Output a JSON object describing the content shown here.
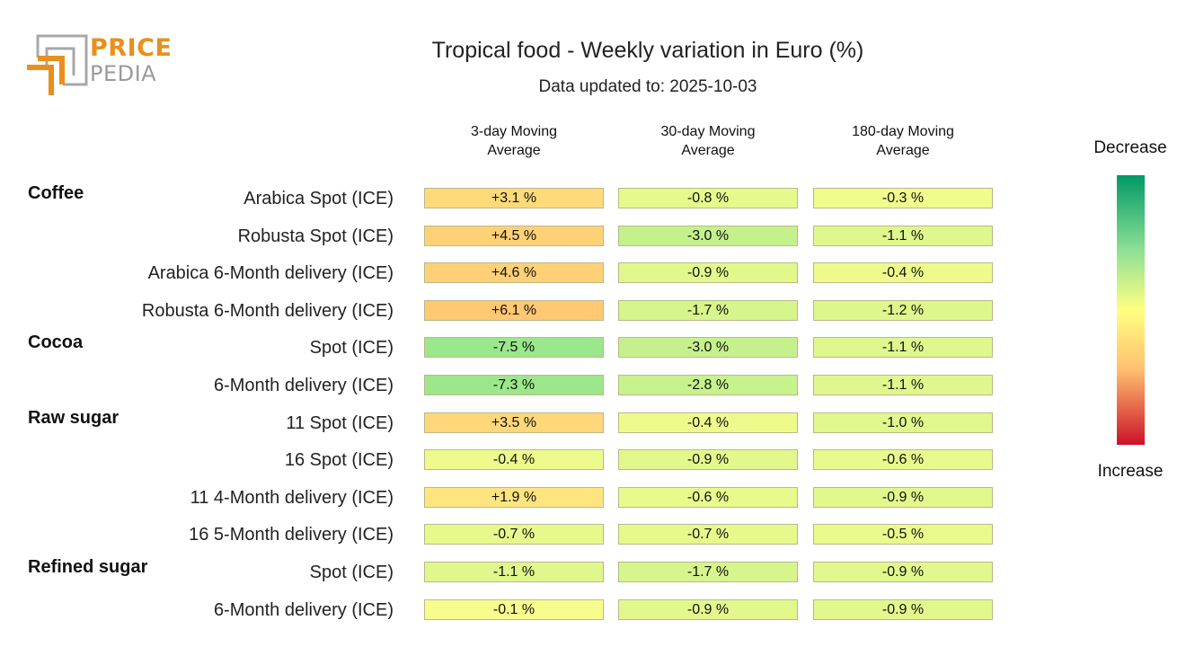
{
  "logo": {
    "line1": "PRICE",
    "line2": "PEDIA"
  },
  "header": {
    "title": "Tropical food - Weekly variation in Euro (%)",
    "subtitle": "Data updated to: 2025-10-03"
  },
  "legend": {
    "top": "Decrease",
    "bottom": "Increase",
    "colors": {
      "decrease": "#009966",
      "neutral": "#ffff80",
      "increase": "#cc1128"
    }
  },
  "chart_data": {
    "type": "heatmap",
    "title": "Tropical food - Weekly variation in Euro (%)",
    "subtitle": "Data updated to: 2025-10-03",
    "columns": [
      "3-day Moving Average",
      "30-day Moving Average",
      "180-day Moving Average"
    ],
    "column_lines": [
      [
        "3-day Moving",
        "Average"
      ],
      [
        "30-day Moving",
        "Average"
      ],
      [
        "180-day Moving",
        "Average"
      ]
    ],
    "unit": "%",
    "rows": [
      {
        "group": "Coffee",
        "label": "Arabica Spot (ICE)",
        "values": [
          3.1,
          -0.8,
          -0.3
        ],
        "text": [
          "+3.1 %",
          "-0.8 %",
          "-0.3 %"
        ]
      },
      {
        "group": "",
        "label": "Robusta Spot (ICE)",
        "values": [
          4.5,
          -3.0,
          -1.1
        ],
        "text": [
          "+4.5 %",
          "-3.0 %",
          "-1.1 %"
        ]
      },
      {
        "group": "",
        "label": "Arabica 6-Month delivery (ICE)",
        "values": [
          4.6,
          -0.9,
          -0.4
        ],
        "text": [
          "+4.6 %",
          "-0.9 %",
          "-0.4 %"
        ]
      },
      {
        "group": "",
        "label": "Robusta 6-Month delivery (ICE)",
        "values": [
          6.1,
          -1.7,
          -1.2
        ],
        "text": [
          "+6.1 %",
          "-1.7 %",
          "-1.2 %"
        ]
      },
      {
        "group": "Cocoa",
        "label": "Spot (ICE)",
        "values": [
          -7.5,
          -3.0,
          -1.1
        ],
        "text": [
          "-7.5 %",
          "-3.0 %",
          "-1.1 %"
        ]
      },
      {
        "group": "",
        "label": "6-Month delivery (ICE)",
        "values": [
          -7.3,
          -2.8,
          -1.1
        ],
        "text": [
          "-7.3 %",
          "-2.8 %",
          "-1.1 %"
        ]
      },
      {
        "group": "Raw sugar",
        "label": "11 Spot (ICE)",
        "values": [
          3.5,
          -0.4,
          -1.0
        ],
        "text": [
          "+3.5 %",
          "-0.4 %",
          "-1.0 %"
        ]
      },
      {
        "group": "",
        "label": "16 Spot (ICE)",
        "values": [
          -0.4,
          -0.9,
          -0.6
        ],
        "text": [
          "-0.4 %",
          "-0.9 %",
          "-0.6 %"
        ]
      },
      {
        "group": "",
        "label": "11 4-Month delivery (ICE)",
        "values": [
          1.9,
          -0.6,
          -0.9
        ],
        "text": [
          "+1.9 %",
          "-0.6 %",
          "-0.9 %"
        ]
      },
      {
        "group": "",
        "label": "16 5-Month delivery (ICE)",
        "values": [
          -0.7,
          -0.7,
          -0.5
        ],
        "text": [
          "-0.7 %",
          "-0.7 %",
          "-0.5 %"
        ]
      },
      {
        "group": "Refined sugar",
        "label": "Spot (ICE)",
        "values": [
          -1.1,
          -1.7,
          -0.9
        ],
        "text": [
          "-1.1 %",
          "-1.7 %",
          "-0.9 %"
        ]
      },
      {
        "group": "",
        "label": "6-Month delivery (ICE)",
        "values": [
          -0.1,
          -0.9,
          -0.9
        ],
        "text": [
          "-0.1 %",
          "-0.9 %",
          "-0.9 %"
        ]
      }
    ]
  }
}
